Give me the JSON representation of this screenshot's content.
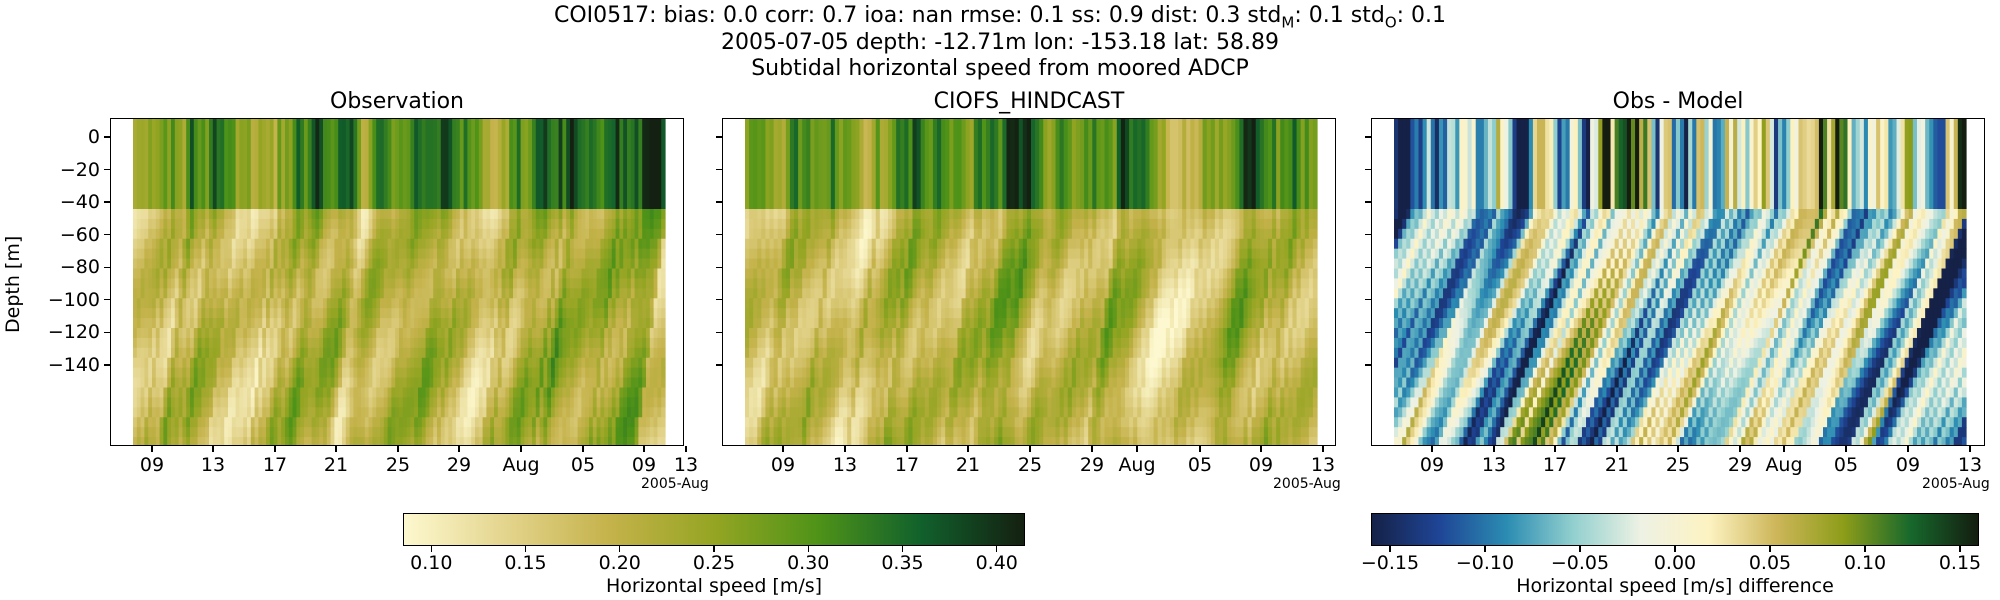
{
  "figure": {
    "title_lines": [
      "COI0517: bias: 0.0  corr: 0.7  ioa: nan  rmse: 0.1  ss: 0.9  dist: 0.3  std",
      "2005-07-05 depth: -12.71m lon: -153.18 lat: 58.89",
      "Subtidal horizontal speed from moored ADCP"
    ],
    "title_line1_parts": {
      "prefix": "COI0517: bias: 0.0  corr: 0.7  ioa: nan  rmse: 0.1  ss: 0.9  dist: 0.3  std",
      "sub_m": "M",
      "mid": ": 0.1  std",
      "sub_o": "O",
      "suffix": ": 0.1"
    }
  },
  "chart_data": [
    {
      "type": "heatmap",
      "title": "Observation",
      "ylabel": "Depth [m]",
      "xlabel": "",
      "x_ticks": [
        "09",
        "13",
        "17",
        "21",
        "25",
        "29",
        "Aug",
        "05",
        "09",
        "13"
      ],
      "x_offset_label": "2005-Aug",
      "y_ticks": [
        "0",
        "−20",
        "−40",
        "−60",
        "−80",
        "−100",
        "−120",
        "−140"
      ],
      "ylim": [
        -141,
        9
      ],
      "colormap": "speed",
      "seed": 11
    },
    {
      "type": "heatmap",
      "title": "CIOFS_HINDCAST",
      "ylabel": "",
      "xlabel": "",
      "x_ticks": [
        "09",
        "13",
        "17",
        "21",
        "25",
        "29",
        "Aug",
        "05",
        "09",
        "13"
      ],
      "x_offset_label": "2005-Aug",
      "y_ticks": [],
      "ylim": [
        -141,
        9
      ],
      "colormap": "speed",
      "seed": 23
    },
    {
      "type": "heatmap",
      "title": "Obs - Model",
      "ylabel": "",
      "xlabel": "",
      "x_ticks": [
        "09",
        "13",
        "17",
        "21",
        "25",
        "29",
        "Aug",
        "05",
        "09",
        "13"
      ],
      "x_offset_label": "2005-Aug",
      "y_ticks": [],
      "ylim": [
        -141,
        9
      ],
      "colormap": "diff",
      "seed": 37
    }
  ],
  "colorbars": [
    {
      "label": "Horizontal speed [m/s]",
      "ticks": [
        "0.10",
        "0.15",
        "0.20",
        "0.25",
        "0.30",
        "0.35",
        "0.40"
      ],
      "range": [
        0.085,
        0.415
      ],
      "tick_values": [
        0.1,
        0.15,
        0.2,
        0.25,
        0.3,
        0.35,
        0.4
      ],
      "colors": [
        "#fdf8cf",
        "#e3d48c",
        "#c4b24a",
        "#95a523",
        "#4f9318",
        "#11612c",
        "#142011"
      ]
    },
    {
      "label": "Horizontal speed [m/s] difference",
      "ticks": [
        "−0.15",
        "−0.10",
        "−0.05",
        "0.00",
        "0.05",
        "0.10",
        "0.15"
      ],
      "range": [
        -0.16,
        0.16
      ],
      "tick_values": [
        -0.15,
        -0.1,
        -0.05,
        0.0,
        0.05,
        0.1,
        0.15
      ],
      "colors": [
        "#152147",
        "#1f4596",
        "#2b8cb2",
        "#93d0cf",
        "#eef2e4",
        "#fdf3c2",
        "#cdb65a",
        "#8d9d19",
        "#17682c",
        "#141d10"
      ]
    }
  ]
}
